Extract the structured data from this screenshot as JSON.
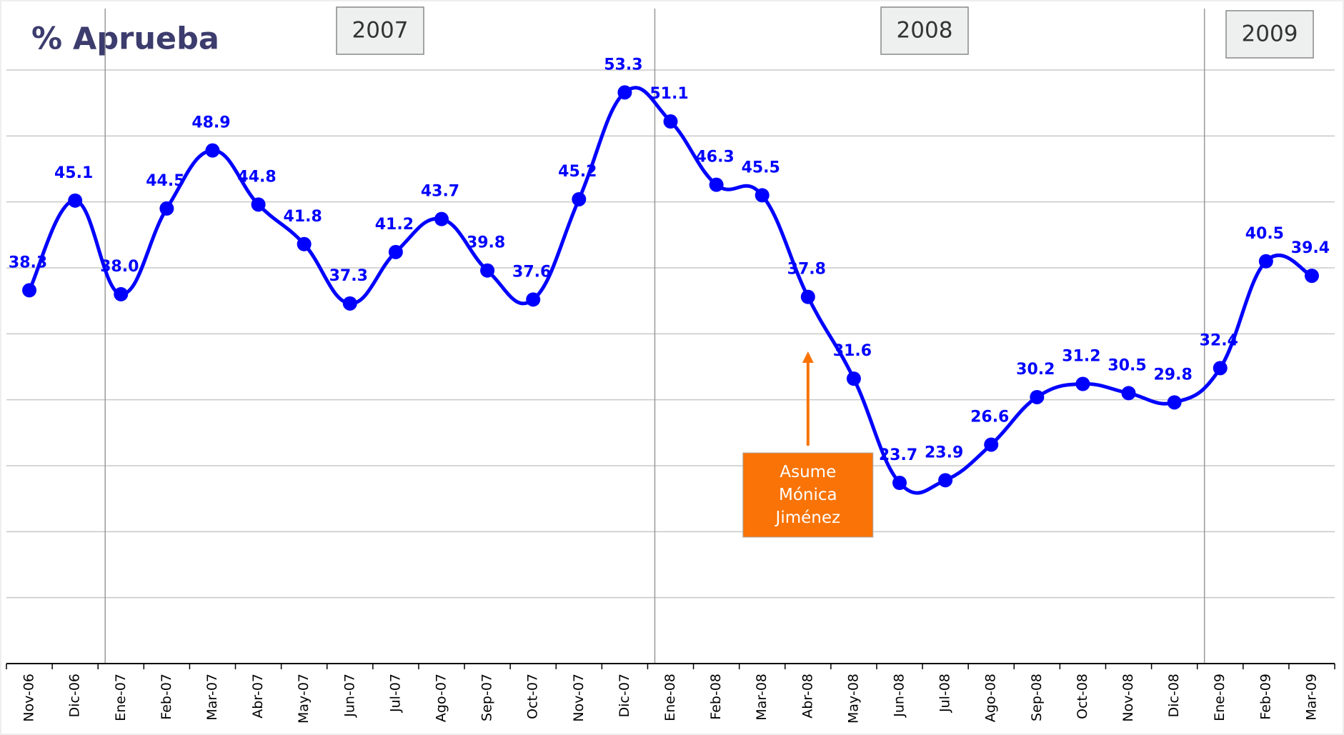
{
  "chart_data": {
    "type": "line",
    "title": "% Aprueba",
    "categories": [
      "Nov-06",
      "Dic-06",
      "Ene-07",
      "Feb-07",
      "Mar-07",
      "Abr-07",
      "May-07",
      "Jun-07",
      "Jul-07",
      "Ago-07",
      "Sep-07",
      "Oct-07",
      "Nov-07",
      "Dic-07",
      "Ene-08",
      "Feb-08",
      "Mar-08",
      "Abr-08",
      "May-08",
      "Jun-08",
      "Jul-08",
      "Ago-08",
      "Sep-08",
      "Oct-08",
      "Nov-08",
      "Dic-08",
      "Ene-09",
      "Feb-09",
      "Mar-09"
    ],
    "series": [
      {
        "name": "% Aprueba",
        "color": "#0000ff",
        "values": [
          38.3,
          45.1,
          38.0,
          44.5,
          48.9,
          44.8,
          41.8,
          37.3,
          41.2,
          43.7,
          39.8,
          37.6,
          45.2,
          53.3,
          51.1,
          46.3,
          45.5,
          37.8,
          31.6,
          23.7,
          23.9,
          26.6,
          30.2,
          31.2,
          30.5,
          29.8,
          32.4,
          40.5,
          39.4
        ],
        "value_labels": [
          "38.3",
          "45.1",
          "38.0",
          "44.5",
          "48.9",
          "44.8",
          "41.8",
          "37.3",
          "41.2",
          "43.7",
          "39.8",
          "37.6",
          "45.2",
          "53.3",
          "51.1",
          "46.3",
          "45.5",
          "37.8",
          "31.6",
          "23.7",
          "23.9",
          "26.6",
          "30.2",
          "31.2",
          "30.5",
          "29.8",
          "32.4",
          "40.5",
          "39.4"
        ]
      }
    ],
    "ylim": [
      10,
      55
    ],
    "yticks": [
      15,
      20,
      25,
      30,
      35,
      40,
      45,
      50,
      55
    ],
    "grid": true,
    "periods": [
      "2007",
      "2008",
      "2009"
    ],
    "annotation": "Asume Mónica Jiménez",
    "annotation_color": "#f97306"
  }
}
